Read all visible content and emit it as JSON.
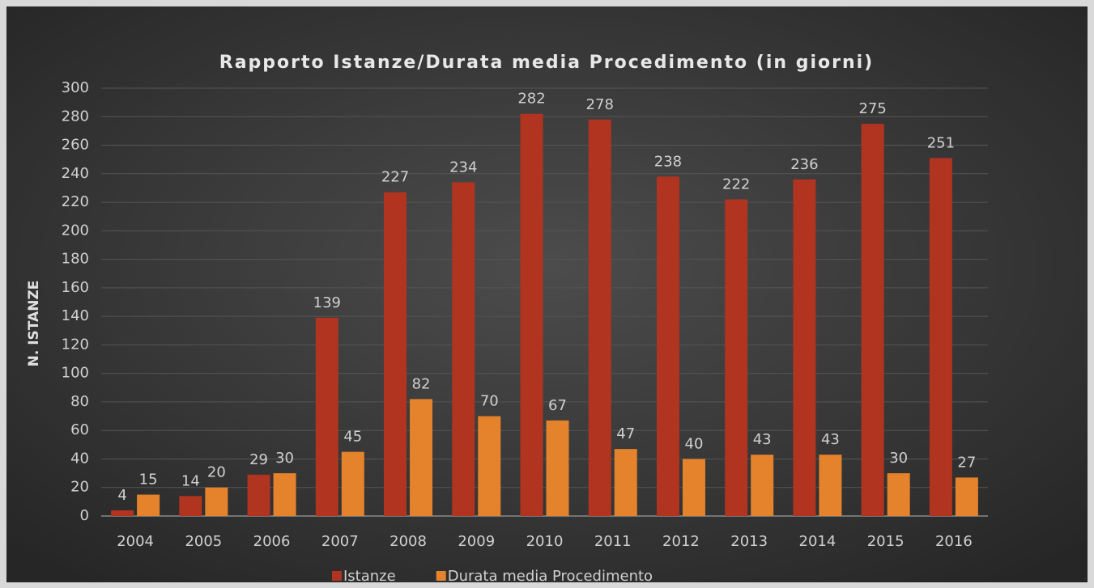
{
  "chart_data": {
    "type": "bar",
    "title": "Rapporto Istanze/Durata media Procedimento (in giorni)",
    "y_label": "N. ISTANZE",
    "categories": [
      "2004",
      "2005",
      "2006",
      "2007",
      "2008",
      "2009",
      "2010",
      "2011",
      "2012",
      "2013",
      "2014",
      "2015",
      "2016"
    ],
    "series": [
      {
        "name": "Istanze",
        "color": "#b0341f",
        "values": [
          4,
          14,
          29,
          139,
          227,
          234,
          282,
          278,
          238,
          222,
          236,
          275,
          251
        ]
      },
      {
        "name": "Durata media Procedimento",
        "color": "#e5822c",
        "values": [
          15,
          20,
          30,
          45,
          82,
          70,
          67,
          47,
          40,
          43,
          43,
          30,
          27
        ]
      }
    ],
    "ylim": [
      0,
      300
    ],
    "yticks": [
      0,
      20,
      40,
      60,
      80,
      100,
      120,
      140,
      160,
      180,
      200,
      220,
      240,
      260,
      280,
      300
    ],
    "grid": true,
    "legend": "bottom"
  }
}
